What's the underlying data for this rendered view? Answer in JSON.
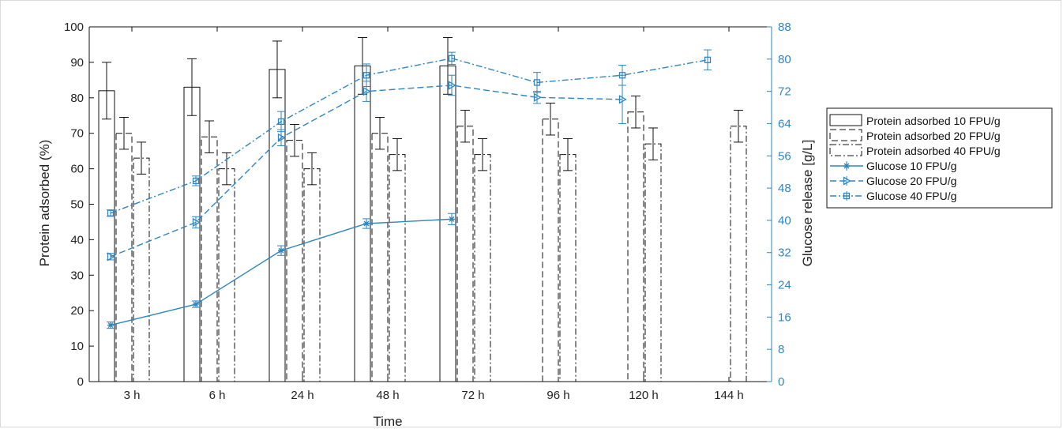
{
  "chart_data": {
    "type": "bar",
    "xlabel": "Time",
    "ylabel": "Protein adsorbed (%)",
    "y2label": "Glucose release [g/L]",
    "categories": [
      "3 h",
      "6 h",
      "24 h",
      "48 h",
      "72 h",
      "96 h",
      "120 h",
      "144 h"
    ],
    "ylim": [
      0,
      100
    ],
    "y2lim": [
      0,
      88
    ],
    "yticks": [
      0,
      10,
      20,
      30,
      40,
      50,
      60,
      70,
      80,
      90,
      100
    ],
    "y2ticks": [
      0,
      8,
      16,
      24,
      32,
      40,
      48,
      56,
      64,
      72,
      80,
      88
    ],
    "secondary_axis_color": "#2e86c1",
    "legend_position": "right",
    "bar_series": [
      {
        "name": "Protein adsorbed 10 FPU/g",
        "style": "solid",
        "values": [
          82,
          83,
          88,
          89,
          89,
          0,
          0,
          0
        ],
        "errors": [
          8,
          8,
          8,
          8,
          8,
          0,
          0,
          0
        ]
      },
      {
        "name": "Protein adsorbed 20 FPU/g",
        "style": "dashed",
        "values": [
          70,
          69,
          68,
          70,
          72,
          74,
          76,
          0
        ],
        "errors": [
          4.5,
          4.5,
          4.5,
          4.5,
          4.5,
          4.5,
          4.5,
          0
        ]
      },
      {
        "name": "Protein adsorbed 40 FPU/g",
        "style": "dashdot",
        "values": [
          63,
          60,
          60,
          64,
          64,
          64,
          67,
          72
        ],
        "errors": [
          4.5,
          4.5,
          4.5,
          4.5,
          4.5,
          4.5,
          4.5,
          4.5
        ]
      }
    ],
    "line_series": [
      {
        "name": "Glucose 10 FPU/g",
        "style": "solid",
        "marker": "star",
        "values": [
          14,
          19.2,
          32.5,
          39.2,
          40.3,
          null,
          null,
          null
        ],
        "errors": [
          0.8,
          0.8,
          1.2,
          1.2,
          1.4,
          null,
          null,
          null
        ]
      },
      {
        "name": "Glucose 20 FPU/g",
        "style": "dashed",
        "marker": "triangle-right",
        "values": [
          31,
          39.5,
          60.5,
          72,
          73.5,
          70.5,
          70,
          null
        ],
        "errors": [
          0.8,
          1.4,
          2,
          2.5,
          2.5,
          1.5,
          6,
          null
        ]
      },
      {
        "name": "Glucose 40 FPU/g",
        "style": "dashdot",
        "marker": "square",
        "values": [
          41.8,
          49.8,
          64.5,
          76,
          80.2,
          74.2,
          76,
          79.8
        ],
        "errors": [
          0.8,
          1.2,
          2.5,
          2.8,
          1.5,
          2.5,
          2.5,
          2.5
        ]
      }
    ]
  }
}
